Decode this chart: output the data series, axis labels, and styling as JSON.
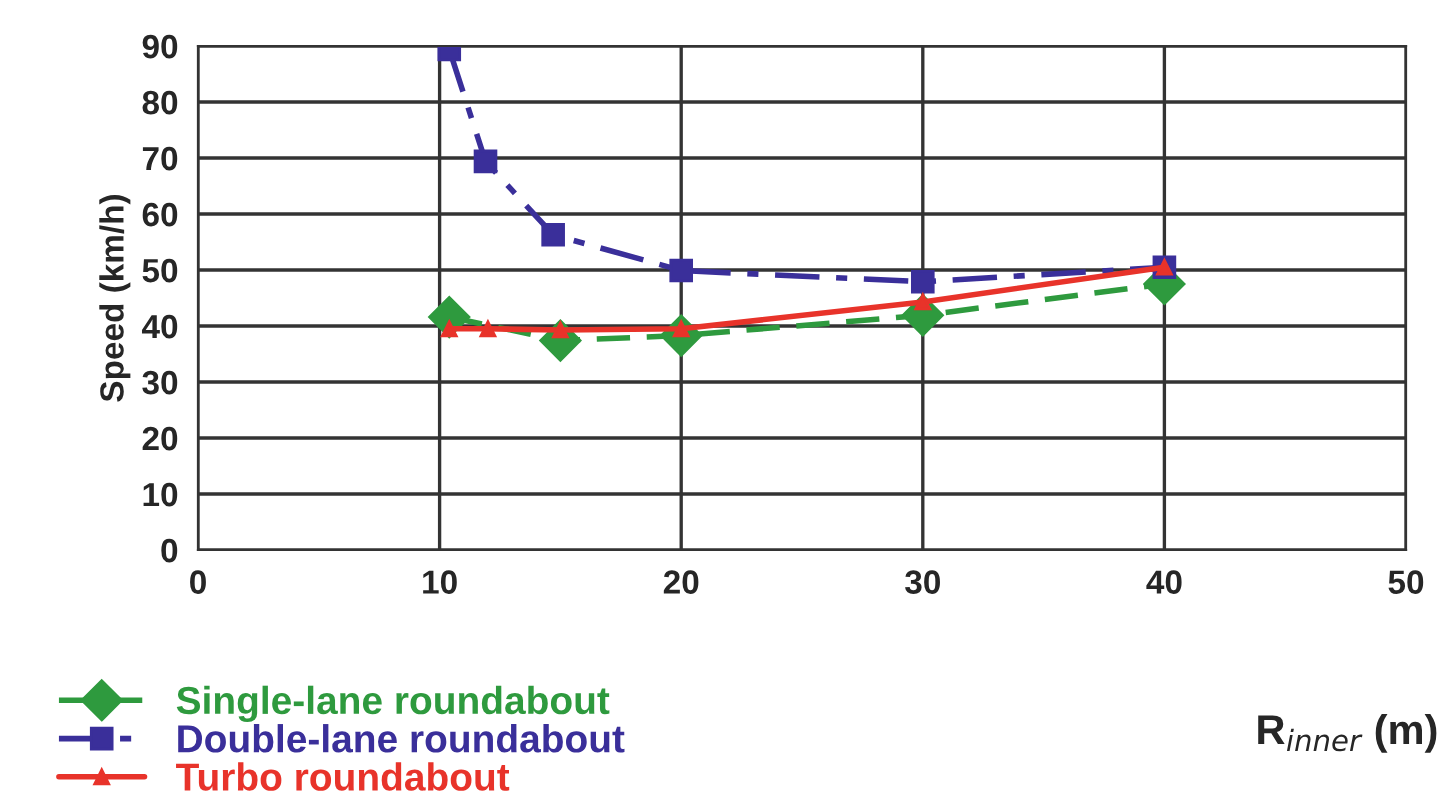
{
  "chart_data": {
    "type": "line",
    "xlabel": "R$_{inner}$ (m)",
    "ylabel": "Speed (km/h)",
    "xlim": [
      0,
      50
    ],
    "xticks": [
      0,
      10,
      20,
      30,
      40,
      50
    ],
    "ylim": [
      0,
      90
    ],
    "yticks": [
      0,
      10,
      20,
      30,
      40,
      50,
      60,
      70,
      80,
      90
    ],
    "grid": true,
    "legend": "bottom left",
    "series": [
      {
        "name": "Single-lane roundabout",
        "color": "#2e9a3e",
        "marker": "diamond",
        "line_style": "dashed",
        "x": [
          10.4,
          15,
          20,
          30,
          40
        ],
        "values": [
          41.6,
          37.4,
          38.3,
          41.9,
          47.5
        ]
      },
      {
        "name": "Double-lane roundabout",
        "color": "#3a2f9a",
        "marker": "square",
        "line_style": "dashdot",
        "x": [
          10.4,
          11.9,
          14.7,
          20,
          30,
          40
        ],
        "values": [
          89.4,
          69.4,
          56.3,
          49.9,
          47.9,
          50.5
        ]
      },
      {
        "name": "Turbo roundabout",
        "color": "#e8332a",
        "marker": "triangle",
        "line_style": "solid",
        "x": [
          10.4,
          12,
          15,
          20,
          30,
          40
        ],
        "values": [
          39.5,
          39.5,
          39.3,
          39.5,
          44.3,
          50.5
        ]
      }
    ]
  }
}
